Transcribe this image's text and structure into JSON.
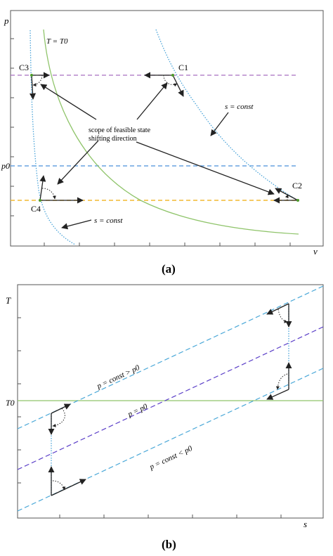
{
  "panel_a": {
    "caption": "(a)",
    "axis_y": "p",
    "axis_x": "v",
    "p0_label": "p0",
    "isotherm_label": "T = T0",
    "points": {
      "c1": "C1",
      "c2": "C2",
      "c3": "C3",
      "c4": "C4"
    },
    "isentrope_label_top": "s = const",
    "isentrope_label_bottom": "s = const",
    "annotation_line1": "scope of feasible state",
    "annotation_line2": "shifting direction"
  },
  "panel_b": {
    "caption": "(b)",
    "axis_y": "T",
    "axis_x": "s",
    "t0_label": "T0",
    "line_high": "p = const > p0",
    "line_mid": "p = p0",
    "line_low": "p = const < p0"
  },
  "colors": {
    "isotherm": "#8fc46a",
    "isentrope": "#4aa3d8",
    "p_high": "#a76fc0",
    "p0": "#4a90d9",
    "p_low": "#f2b830",
    "isobar_b": "#4aa8d8",
    "isobar_mid_b": "#5b3fc8",
    "t0_line": "#8fc46a"
  }
}
